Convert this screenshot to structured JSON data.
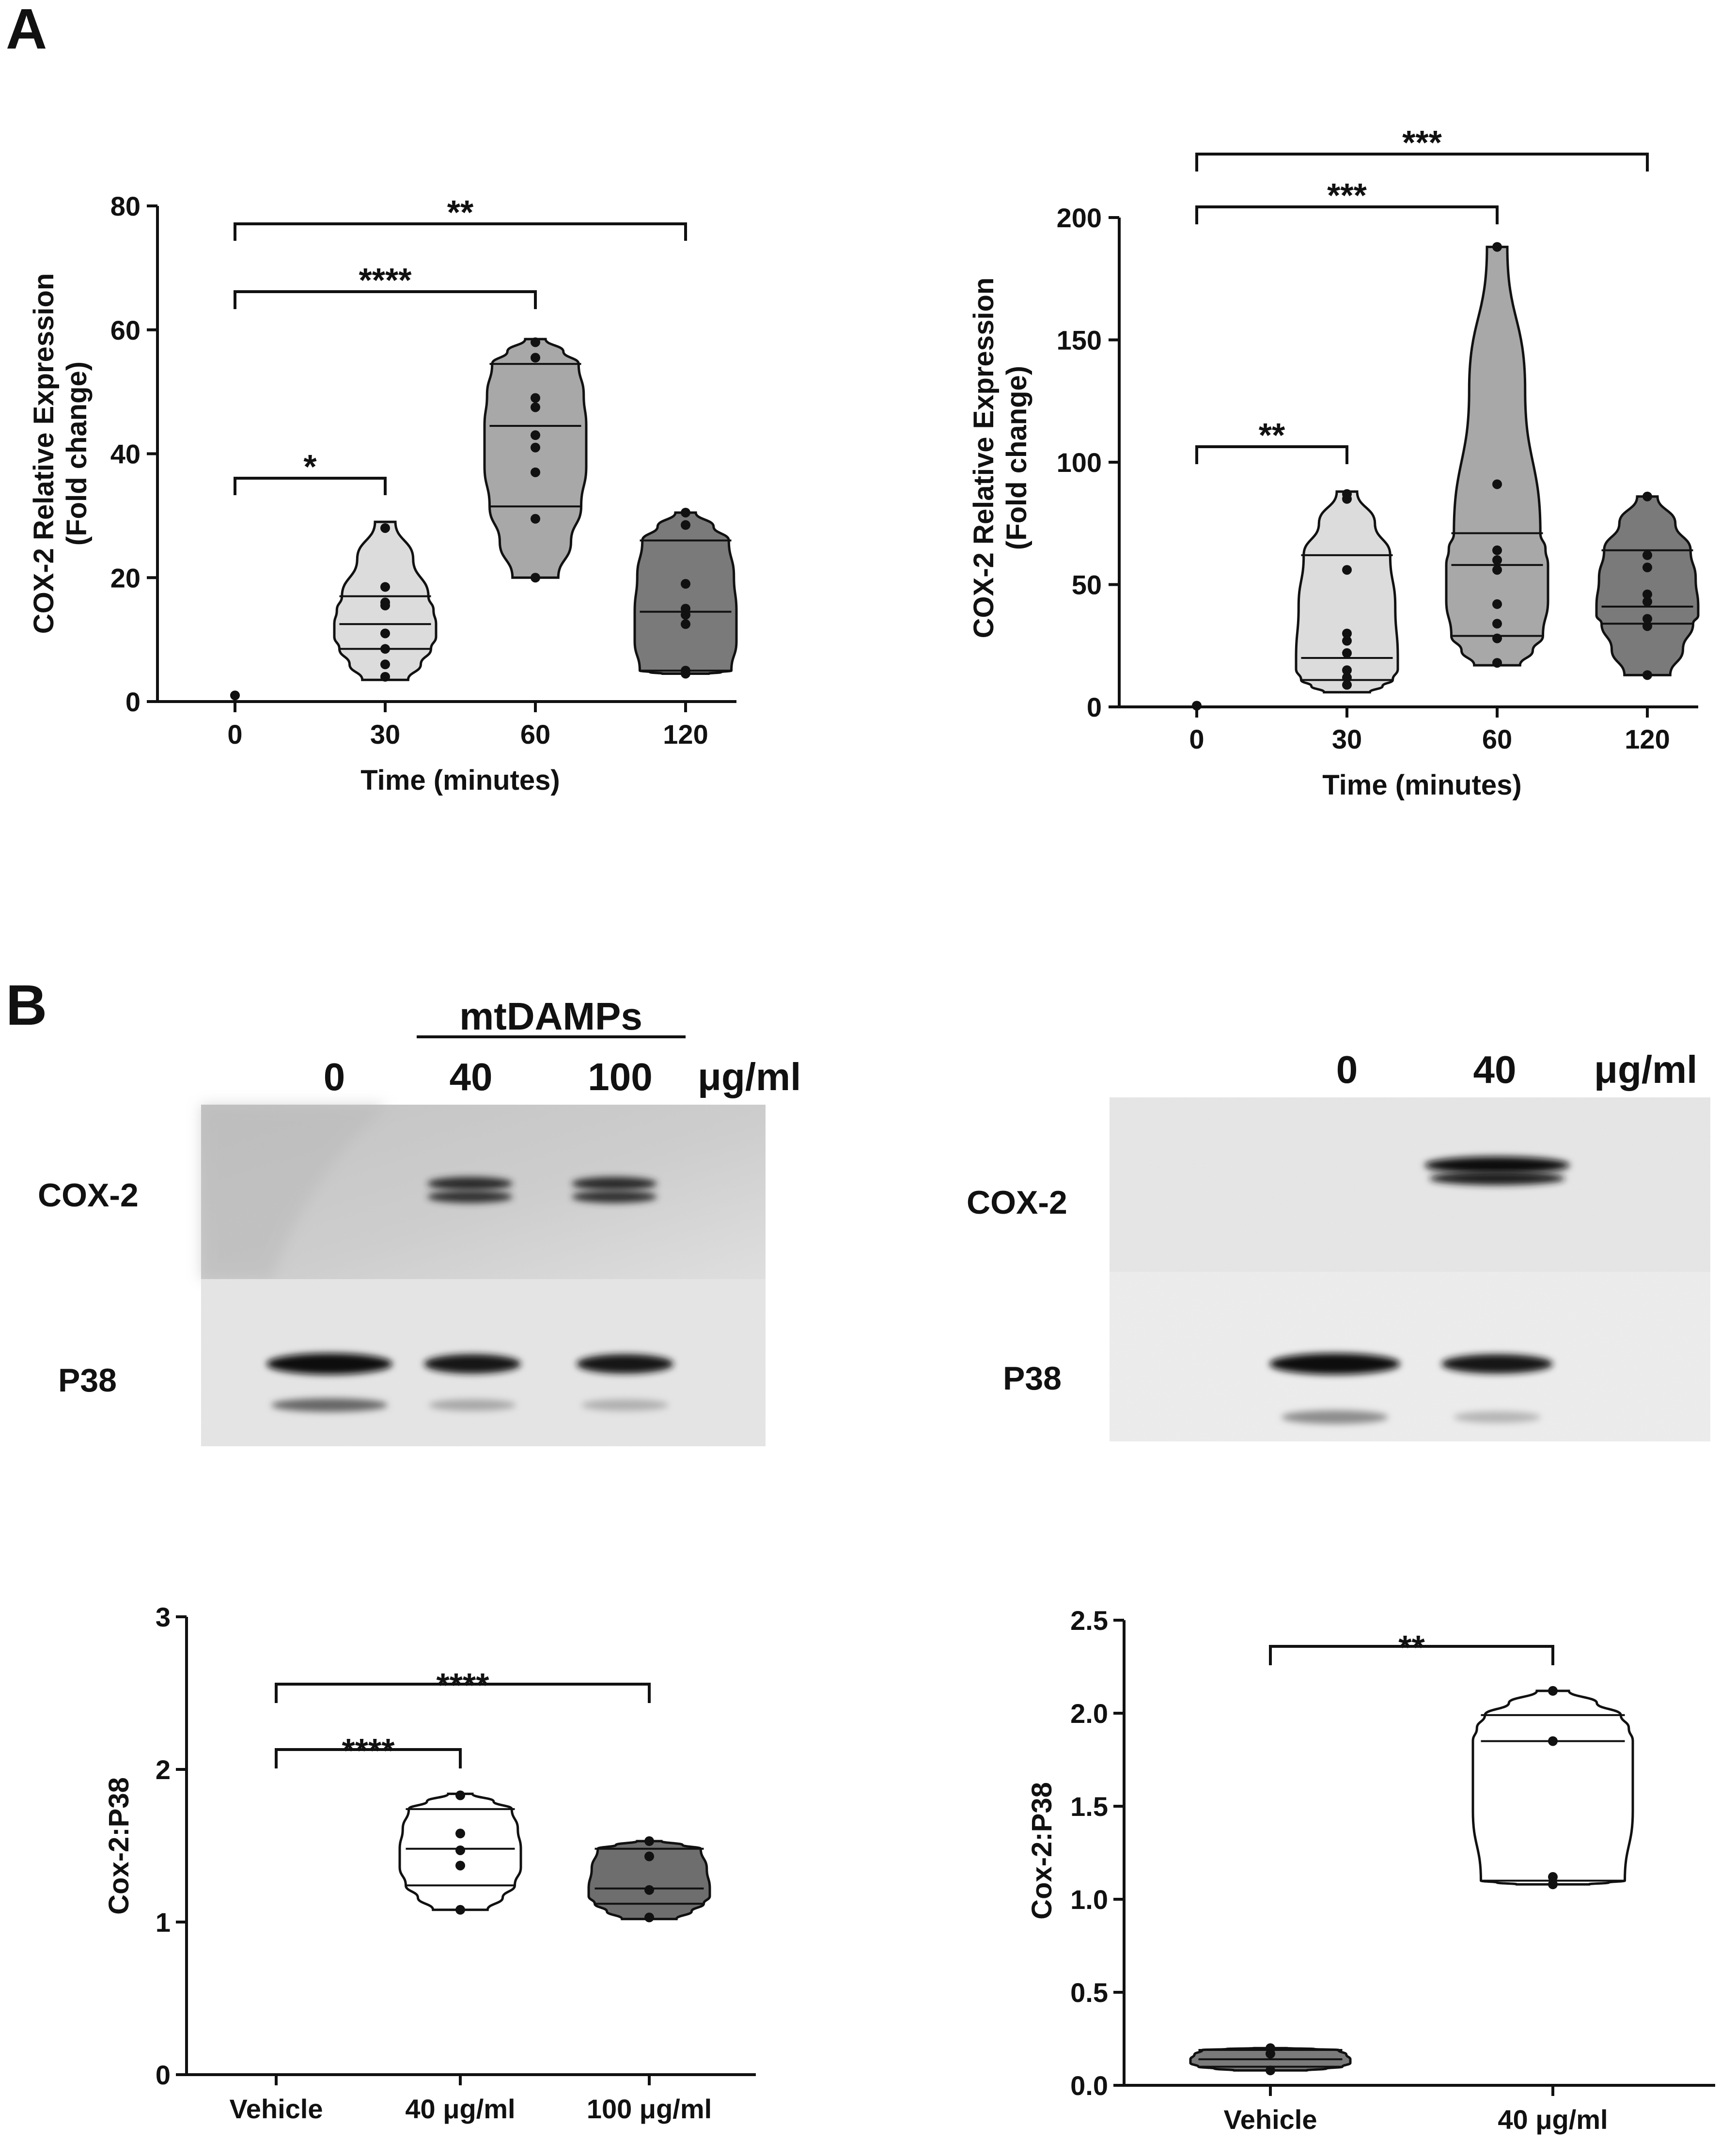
{
  "figure": {
    "panel_a_label": "A",
    "panel_b_label": "B"
  },
  "western_blots": [
    {
      "group_label": "mtDAMPs",
      "lane_labels": [
        "0",
        "40",
        "100"
      ],
      "unit_label": "μg/ml",
      "row_labels": [
        "COX-2",
        "P38"
      ]
    },
    {
      "group_label": "",
      "lane_labels": [
        "0",
        "40"
      ],
      "unit_label": "μg/ml",
      "row_labels": [
        "COX-2",
        "P38"
      ]
    }
  ],
  "chart_data": [
    {
      "type": "violin",
      "title": "",
      "xlabel": "Time (minutes)",
      "ylabel": "COX-2 Relative Expression (Fold change)",
      "ylabel_lines": [
        "COX-2 Relative Expression",
        "(Fold change)"
      ],
      "ylim": [
        0,
        80
      ],
      "yticks": [
        0,
        20,
        40,
        60,
        80
      ],
      "categories": [
        "0",
        "30",
        "60",
        "120"
      ],
      "fills": [
        "#ffffff",
        "#dcdcdc",
        "#a8a8a8",
        "#7a7a7a"
      ],
      "groups": [
        {
          "name": "0",
          "min": 1,
          "max": 1,
          "points": [
            1
          ],
          "median": 1,
          "quartiles": [
            1,
            1
          ]
        },
        {
          "name": "30",
          "min": 3.5,
          "max": 29,
          "points": [
            28,
            18.5,
            16,
            15.5,
            11,
            8.5,
            6,
            4
          ],
          "median": 12.5,
          "quartiles": [
            8.5,
            17
          ]
        },
        {
          "name": "60",
          "min": 20,
          "max": 58.5,
          "points": [
            58,
            55.5,
            49,
            47.5,
            43,
            41,
            37,
            29.5,
            20
          ],
          "median": 44.5,
          "quartiles": [
            31.5,
            54.5
          ]
        },
        {
          "name": "120",
          "min": 4.5,
          "max": 30.5,
          "points": [
            30.5,
            28.5,
            19,
            15,
            14,
            12.5,
            5,
            4.5
          ],
          "median": 14.5,
          "quartiles": [
            5,
            26
          ]
        }
      ],
      "significance": [
        {
          "from": "0",
          "to": "30",
          "label": "*"
        },
        {
          "from": "0",
          "to": "60",
          "label": "****"
        },
        {
          "from": "0",
          "to": "120",
          "label": "**"
        }
      ]
    },
    {
      "type": "violin",
      "title": "",
      "xlabel": "Time (minutes)",
      "ylabel": "COX-2 Relative Expression (Fold change)",
      "ylabel_lines": [
        "COX-2 Relative Expression",
        "(Fold change)"
      ],
      "ylim": [
        0,
        200
      ],
      "yticks": [
        0,
        50,
        100,
        150,
        200
      ],
      "categories": [
        "0",
        "30",
        "60",
        "120"
      ],
      "fills": [
        "#ffffff",
        "#dcdcdc",
        "#a8a8a8",
        "#7a7a7a"
      ],
      "groups": [
        {
          "name": "0",
          "min": 0.5,
          "max": 0.5,
          "points": [
            0.5
          ],
          "median": 0.5,
          "quartiles": [
            0.5,
            0.5
          ]
        },
        {
          "name": "30",
          "min": 6,
          "max": 88,
          "points": [
            87,
            85,
            56,
            30,
            27,
            22,
            15,
            12,
            9
          ],
          "median": 20,
          "quartiles": [
            11,
            62
          ]
        },
        {
          "name": "60",
          "min": 17,
          "max": 188,
          "points": [
            188,
            91,
            64,
            60,
            56,
            42,
            34,
            28,
            18
          ],
          "median": 58,
          "quartiles": [
            29,
            71
          ]
        },
        {
          "name": "120",
          "min": 13,
          "max": 86,
          "points": [
            86,
            62,
            57,
            46,
            43,
            36,
            33,
            13
          ],
          "median": 41,
          "quartiles": [
            34,
            64
          ]
        }
      ],
      "significance": [
        {
          "from": "0",
          "to": "30",
          "label": "**"
        },
        {
          "from": "0",
          "to": "60",
          "label": "***"
        },
        {
          "from": "0",
          "to": "120",
          "label": "***"
        }
      ]
    },
    {
      "type": "violin",
      "title": "",
      "xlabel": "",
      "ylabel": "Cox-2:P38",
      "ylim": [
        0,
        3
      ],
      "yticks": [
        0,
        1,
        2,
        3
      ],
      "categories": [
        "Vehicle",
        "40 μg/ml",
        "100 μg/ml"
      ],
      "fills": [
        "#ffffff",
        "#ffffff",
        "#6e6e6e"
      ],
      "groups": [
        {
          "name": "Vehicle",
          "min": null,
          "max": null,
          "points": [],
          "median": null,
          "quartiles": null
        },
        {
          "name": "40 μg/ml",
          "min": 1.08,
          "max": 1.84,
          "points": [
            1.83,
            1.58,
            1.47,
            1.37,
            1.08
          ],
          "median": 1.48,
          "quartiles": [
            1.24,
            1.74
          ]
        },
        {
          "name": "100 μg/ml",
          "min": 1.02,
          "max": 1.53,
          "points": [
            1.53,
            1.43,
            1.21,
            1.03
          ],
          "median": 1.22,
          "quartiles": [
            1.12,
            1.48
          ]
        }
      ],
      "significance": [
        {
          "from": "Vehicle",
          "to": "40 μg/ml",
          "label": "****"
        },
        {
          "from": "Vehicle",
          "to": "100 μg/ml",
          "label": "****"
        }
      ]
    },
    {
      "type": "violin",
      "title": "",
      "xlabel": "",
      "ylabel": "Cox-2:P38",
      "ylim": [
        0,
        2.5
      ],
      "yticks": [
        "0.0",
        "0.5",
        "1.0",
        "1.5",
        "2.0",
        "2.5"
      ],
      "categories": [
        "Vehicle",
        "40 μg/ml"
      ],
      "fills": [
        "#7a7a7a",
        "#ffffff"
      ],
      "groups": [
        {
          "name": "Vehicle",
          "min": 0.08,
          "max": 0.2,
          "points": [
            0.2,
            0.17,
            0.08
          ],
          "median": 0.14,
          "quartiles": [
            0.1,
            0.19
          ]
        },
        {
          "name": "40 μg/ml",
          "min": 1.08,
          "max": 2.12,
          "points": [
            2.12,
            1.85,
            1.12,
            1.08
          ],
          "median": 1.85,
          "quartiles": [
            1.1,
            1.99
          ]
        }
      ],
      "significance": [
        {
          "from": "Vehicle",
          "to": "40 μg/ml",
          "label": "**"
        }
      ]
    }
  ]
}
